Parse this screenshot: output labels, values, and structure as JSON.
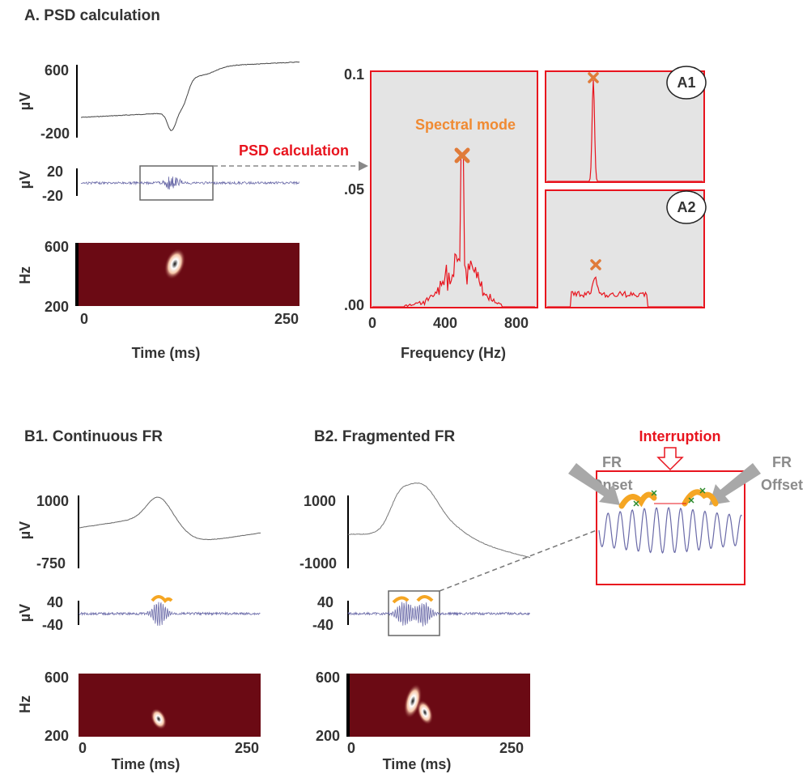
{
  "panel_a": {
    "title": "A. PSD calculation",
    "raw": {
      "unit": "µV",
      "top": "600",
      "bottom": "-200"
    },
    "filtered": {
      "unit": "µV",
      "top": "20",
      "bottom": "-20"
    },
    "spectrogram": {
      "unit": "Hz",
      "top": "600",
      "bottom": "200",
      "x_start": "0",
      "x_end": "250",
      "x_label": "Time (ms)"
    },
    "arrow_label": "PSD calculation",
    "psd": {
      "y_top": "0.1",
      "y_mid": ".05",
      "y_bottom": ".00",
      "x_ticks": [
        "0",
        "400",
        "800"
      ],
      "x_label": "Frequency (Hz)",
      "annotation": "Spectral mode"
    },
    "insets": [
      "A1",
      "A2"
    ]
  },
  "panel_b1": {
    "title": "B1. Continuous FR",
    "raw": {
      "unit": "µV",
      "top": "1000",
      "bottom": "-750"
    },
    "filtered": {
      "unit": "µV",
      "top": "40",
      "bottom": "-40"
    },
    "spectrogram": {
      "unit": "Hz",
      "top": "600",
      "bottom": "200",
      "x_start": "0",
      "x_end": "250",
      "x_label": "Time (ms)"
    }
  },
  "panel_b2": {
    "title": "B2. Fragmented FR",
    "raw": {
      "top": "1000",
      "bottom": "-1000"
    },
    "filtered": {
      "top": "40",
      "bottom": "-40"
    },
    "spectrogram": {
      "top": "600",
      "bottom": "200",
      "x_start": "0",
      "x_end": "250",
      "x_label": "Time (ms)"
    }
  },
  "zoom": {
    "interruption": "Interruption",
    "onset": [
      "FR",
      "Onset"
    ],
    "offset": [
      "FR",
      "Offset"
    ]
  }
}
